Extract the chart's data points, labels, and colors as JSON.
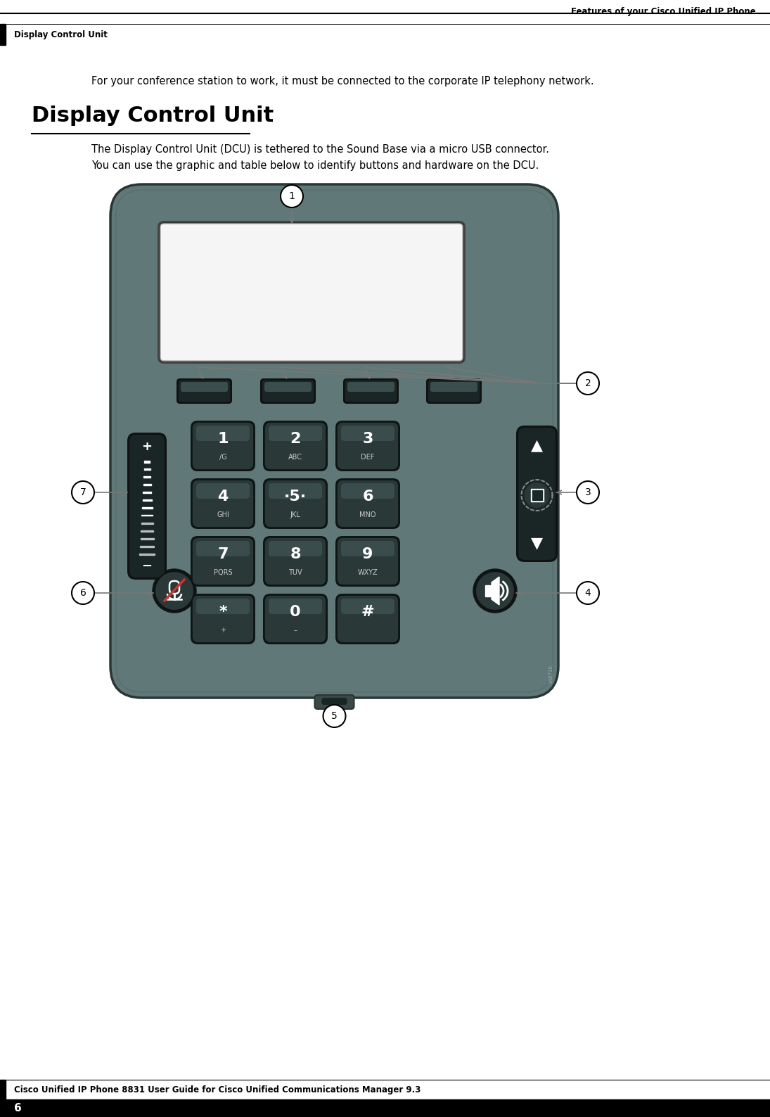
{
  "bg_color": "#ffffff",
  "header_right_text": "Features of your Cisco Unified IP Phone",
  "header_left_text": "Display Control Unit",
  "title_text": "Display Control Unit",
  "intro_text": "For your conference station to work, it must be connected to the corporate IP telephony network.",
  "body_line1": "The Display Control Unit (DCU) is tethered to the Sound Base via a micro USB connector.",
  "body_line2": "You can use the graphic and table below to identify buttons and hardware on the DCU.",
  "footer_guide_text": "Cisco Unified IP Phone 8831 User Guide for Cisco Unified Communications Manager 9.3",
  "footer_page_num": "6",
  "device_bg_color": "#607878",
  "device_border_color": "#2a3535",
  "screen_color": "#ffffff",
  "key_face_color": "#2a3838",
  "key_border_color": "#0d1515",
  "key_shine_color": "#4a6060",
  "vol_key_color": "#1a2525",
  "nav_key_color": "#1a2525",
  "softkey_color": "#1a2525",
  "callout_line_color": "#777777",
  "callout_border_color": "#000000",
  "callout_fill_color": "#ffffff",
  "watermark_color": "#aabbbb",
  "keypad_labels_main": [
    "1",
    "2",
    "3",
    "4",
    "·5·",
    "6",
    "7",
    "8",
    "9",
    "*",
    "0",
    "#"
  ],
  "keypad_labels_sub": [
    "/G",
    "ABC",
    "DEF",
    "GHI",
    "JKL",
    "MNO",
    "PQRS",
    "TUV",
    "WXYZ",
    "+",
    "–",
    ""
  ],
  "footer_line_color": "#000000"
}
